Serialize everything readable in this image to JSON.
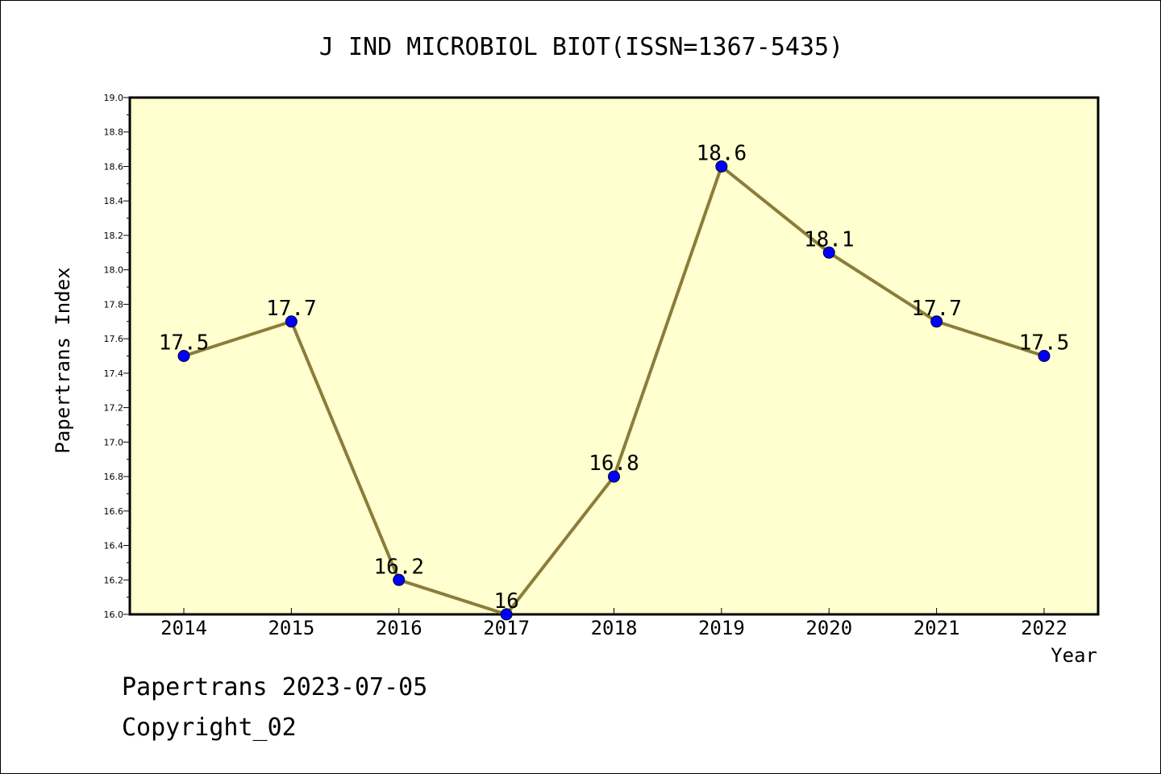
{
  "chart_data": {
    "type": "line",
    "title": "J IND MICROBIOL BIOT(ISSN=1367-5435)",
    "xlabel": "Year",
    "ylabel": "Papertrans Index",
    "categories": [
      "2014",
      "2015",
      "2016",
      "2017",
      "2018",
      "2019",
      "2020",
      "2021",
      "2022"
    ],
    "series": [
      {
        "values": [
          17.5,
          17.7,
          16.2,
          16.0,
          16.8,
          18.6,
          18.1,
          17.7,
          17.5
        ],
        "labels": [
          "17.5",
          "17.7",
          "16.2",
          "16",
          "16.8",
          "18.6",
          "18.1",
          "17.7",
          "17.5"
        ]
      }
    ],
    "ylim": [
      16.0,
      19.0
    ],
    "yticks": [
      "16.0",
      "16.2",
      "16.4",
      "16.6",
      "16.8",
      "17.0",
      "17.2",
      "17.4",
      "17.6",
      "17.8",
      "18.0",
      "18.2",
      "18.4",
      "18.6",
      "18.8",
      "19.0"
    ],
    "grid": false,
    "legend": "none",
    "colors": {
      "plot_background": "#ffffd0",
      "line": "#8b7d3a",
      "marker": "#0000ff"
    }
  },
  "footer": {
    "line1": "Papertrans 2023-07-05",
    "line2": "Copyright_02"
  }
}
